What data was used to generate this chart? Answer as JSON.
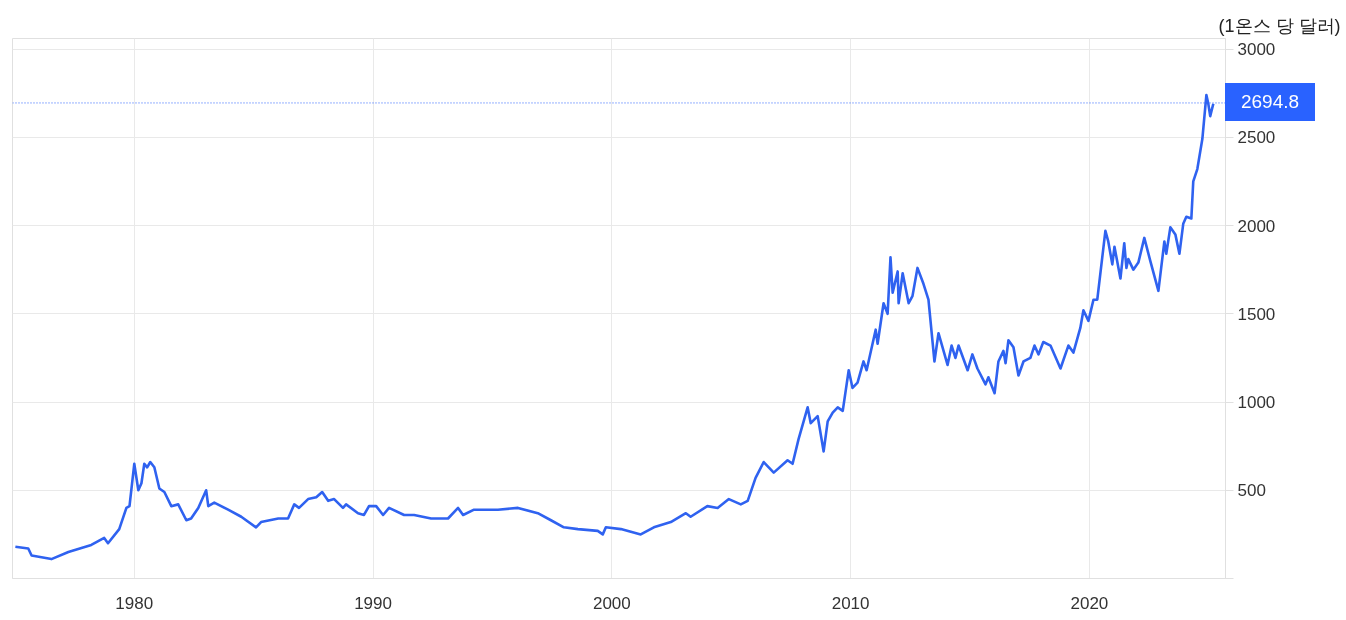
{
  "chart_data": {
    "type": "line",
    "ylabel": "(1온스 당 달러)",
    "xlim": [
      1974.9,
      2025.7
    ],
    "ylim": [
      0,
      3060
    ],
    "xticks": [
      1980,
      1990,
      2000,
      2010,
      2020
    ],
    "yticks": [
      {
        "value": 0,
        "label": null
      },
      500,
      1000,
      1500,
      2000,
      2500,
      3000
    ],
    "grid": true,
    "ref_lines": [
      {
        "axis": "y",
        "value": 2694.8,
        "label": "2694.8",
        "color": "#2962ff",
        "line_style": "dotted"
      }
    ],
    "series": [
      {
        "color": "#2f62f0",
        "x": [
          1975.02,
          1975.56,
          1975.7,
          1976.53,
          1977.24,
          1978.2,
          1978.74,
          1978.9,
          1979.37,
          1979.67,
          1979.8,
          1980.0,
          1980.17,
          1980.3,
          1980.42,
          1980.54,
          1980.67,
          1980.84,
          1981.05,
          1981.26,
          1981.55,
          1981.84,
          1982.18,
          1982.38,
          1982.68,
          1983.01,
          1983.1,
          1983.35,
          1983.93,
          1984.48,
          1985.1,
          1985.31,
          1986.03,
          1986.44,
          1986.7,
          1986.9,
          1987.28,
          1987.62,
          1987.87,
          1988.12,
          1988.37,
          1988.74,
          1988.87,
          1989.37,
          1989.62,
          1989.83,
          1990.13,
          1990.42,
          1990.67,
          1991.3,
          1991.72,
          1992.43,
          1993.14,
          1993.56,
          1993.77,
          1994.23,
          1995.23,
          1996.07,
          1996.9,
          1997.45,
          1997.99,
          1998.58,
          1999.41,
          1999.62,
          1999.75,
          2000.38,
          2001.21,
          2001.76,
          2002.47,
          2003.1,
          2003.3,
          2004.0,
          2004.43,
          2004.9,
          2005.4,
          2005.69,
          2006.02,
          2006.36,
          2006.78,
          2007.36,
          2007.57,
          2007.82,
          2008.2,
          2008.33,
          2008.62,
          2008.87,
          2009.04,
          2009.25,
          2009.46,
          2009.67,
          2009.92,
          2010.08,
          2010.29,
          2010.54,
          2010.67,
          2011.05,
          2011.13,
          2011.38,
          2011.55,
          2011.67,
          2011.76,
          2011.97,
          2012.01,
          2012.18,
          2012.43,
          2012.59,
          2012.8,
          2013.05,
          2013.26,
          2013.51,
          2013.68,
          2014.06,
          2014.23,
          2014.39,
          2014.52,
          2014.9,
          2015.1,
          2015.31,
          2015.65,
          2015.77,
          2016.03,
          2016.19,
          2016.4,
          2016.49,
          2016.61,
          2016.82,
          2017.03,
          2017.24,
          2017.53,
          2017.7,
          2017.87,
          2018.07,
          2018.37,
          2018.79,
          2019.12,
          2019.33,
          2019.62,
          2019.75,
          2019.96,
          2020.17,
          2020.33,
          2020.67,
          2020.79,
          2020.96,
          2021.05,
          2021.3,
          2021.46,
          2021.55,
          2021.63,
          2021.84,
          2022.05,
          2022.3,
          2022.55,
          2022.89,
          2023.14,
          2023.22,
          2023.39,
          2023.6,
          2023.77,
          2023.93,
          2024.06,
          2024.27,
          2024.35,
          2024.52,
          2024.73,
          2024.9,
          2024.98,
          2025.06,
          2025.19
        ],
        "values": [
          180,
          170,
          130,
          110,
          150,
          190,
          230,
          200,
          280,
          400,
          410,
          650,
          500,
          540,
          650,
          630,
          660,
          630,
          510,
          490,
          410,
          420,
          330,
          340,
          400,
          500,
          410,
          430,
          390,
          350,
          290,
          320,
          340,
          340,
          420,
          400,
          450,
          460,
          490,
          440,
          450,
          400,
          420,
          370,
          360,
          410,
          410,
          360,
          400,
          360,
          360,
          340,
          340,
          400,
          360,
          390,
          390,
          400,
          370,
          330,
          290,
          280,
          270,
          250,
          290,
          280,
          250,
          290,
          320,
          370,
          350,
          410,
          400,
          450,
          420,
          440,
          570,
          660,
          600,
          670,
          650,
          790,
          970,
          880,
          920,
          720,
          890,
          940,
          970,
          950,
          1180,
          1080,
          1110,
          1230,
          1180,
          1410,
          1330,
          1560,
          1500,
          1820,
          1620,
          1740,
          1560,
          1730,
          1560,
          1600,
          1760,
          1670,
          1580,
          1230,
          1390,
          1210,
          1320,
          1250,
          1320,
          1180,
          1270,
          1190,
          1100,
          1140,
          1050,
          1230,
          1290,
          1220,
          1350,
          1310,
          1150,
          1230,
          1250,
          1320,
          1270,
          1340,
          1320,
          1190,
          1320,
          1280,
          1420,
          1520,
          1460,
          1580,
          1580,
          1970,
          1910,
          1780,
          1880,
          1700,
          1900,
          1760,
          1810,
          1750,
          1790,
          1930,
          1800,
          1630,
          1910,
          1840,
          1990,
          1950,
          1840,
          2010,
          2050,
          2040,
          2250,
          2320,
          2490,
          2740,
          2690,
          2620,
          2690
        ]
      }
    ]
  }
}
